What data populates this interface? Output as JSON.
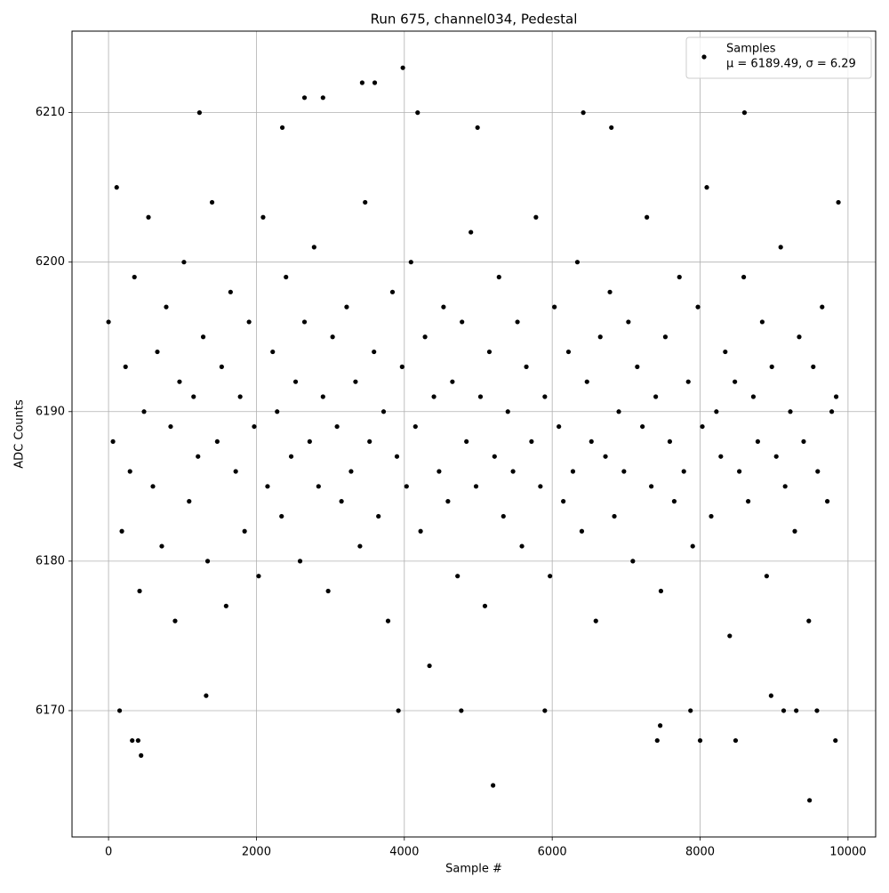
{
  "chart_data": {
    "type": "scatter",
    "title": "Run 675, channel034, Pedestal",
    "x_label": "Sample #",
    "y_label": "ADC Counts",
    "xlim": [
      -494,
      10374
    ],
    "ylim": [
      6161.55,
      6215.45
    ],
    "xticks": [
      0,
      2000,
      4000,
      6000,
      8000,
      10000
    ],
    "yticks": [
      6170,
      6180,
      6190,
      6200,
      6210
    ],
    "grid": true,
    "legend_position": "upper right",
    "legend_note": "μ = 6189.49, σ = 6.29",
    "x": [
      0,
      60,
      110,
      180,
      230,
      290,
      350,
      420,
      480,
      540,
      600,
      660,
      720,
      780,
      840,
      900,
      960,
      1020,
      1090,
      1150,
      1210,
      1280,
      1340,
      1400,
      1470,
      1530,
      1590,
      1650,
      1720,
      1780,
      1840,
      1900,
      1970,
      2030,
      2090,
      2150,
      2220,
      2280,
      2340,
      2400,
      2470,
      2530,
      2590,
      2650,
      2720,
      2780,
      2840,
      2900,
      2970,
      3030,
      3090,
      3150,
      3220,
      3280,
      3340,
      3400,
      3470,
      3530,
      3590,
      3650,
      3720,
      3780,
      3840,
      3900,
      3970,
      4030,
      4090,
      4150,
      4220,
      4280,
      4340,
      4400,
      4470,
      4530,
      4590,
      4650,
      4720,
      4780,
      4840,
      4900,
      4970,
      5030,
      5090,
      5150,
      5220,
      5280,
      5340,
      5400,
      5470,
      5530,
      5590,
      5650,
      5720,
      5780,
      5840,
      5900,
      5970,
      6030,
      6090,
      6150,
      6220,
      6280,
      6340,
      6400,
      6470,
      6530,
      6590,
      6650,
      6720,
      6780,
      6840,
      6900,
      6970,
      7030,
      7090,
      7150,
      7220,
      7280,
      7340,
      7400,
      7470,
      7530,
      7590,
      7650,
      7720,
      7780,
      7840,
      7900,
      7970,
      8030,
      8090,
      8150,
      8220,
      8280,
      8340,
      8400,
      8470,
      8530,
      8590,
      8650,
      8720,
      8780,
      8840,
      8900,
      8970,
      9030,
      9090,
      9150,
      9220,
      9280,
      9340,
      9400,
      9470,
      9530,
      9590,
      9650,
      9720,
      9780,
      9840,
      9870,
      150,
      320,
      400,
      440,
      1230,
      3430,
      3600,
      3980,
      4180,
      3920,
      5200,
      9480,
      8600,
      6420,
      4990,
      2350,
      6800,
      2900,
      2650,
      7420,
      7460,
      8000,
      8480,
      9830,
      5900,
      4770,
      7870,
      9130,
      9300,
      9580,
      1320,
      8960
    ],
    "series": [
      {
        "name": "Samples",
        "color": "#000000",
        "values": [
          6196,
          6188,
          6205,
          6182,
          6193,
          6186,
          6199,
          6178,
          6190,
          6203,
          6185,
          6194,
          6181,
          6197,
          6189,
          6176,
          6192,
          6200,
          6184,
          6191,
          6187,
          6195,
          6180,
          6204,
          6188,
          6193,
          6177,
          6198,
          6186,
          6191,
          6182,
          6196,
          6189,
          6179,
          6203,
          6185,
          6194,
          6190,
          6183,
          6199,
          6187,
          6192,
          6180,
          6196,
          6188,
          6201,
          6185,
          6191,
          6178,
          6195,
          6189,
          6184,
          6197,
          6186,
          6192,
          6181,
          6204,
          6188,
          6194,
          6183,
          6190,
          6176,
          6198,
          6187,
          6193,
          6185,
          6200,
          6189,
          6182,
          6195,
          6173,
          6191,
          6186,
          6197,
          6184,
          6192,
          6179,
          6196,
          6188,
          6202,
          6185,
          6191,
          6177,
          6194,
          6187,
          6199,
          6183,
          6190,
          6186,
          6196,
          6181,
          6193,
          6188,
          6203,
          6185,
          6191,
          6179,
          6197,
          6189,
          6184,
          6194,
          6186,
          6200,
          6182,
          6192,
          6188,
          6176,
          6195,
          6187,
          6198,
          6183,
          6190,
          6186,
          6196,
          6180,
          6193,
          6189,
          6203,
          6185,
          6191,
          6178,
          6195,
          6188,
          6184,
          6199,
          6186,
          6192,
          6181,
          6197,
          6189,
          6205,
          6183,
          6190,
          6187,
          6194,
          6175,
          6192,
          6186,
          6199,
          6184,
          6191,
          6188,
          6196,
          6179,
          6193,
          6187,
          6201,
          6185,
          6190,
          6182,
          6195,
          6188,
          6176,
          6193,
          6186,
          6197,
          6184,
          6190,
          6191,
          6204,
          6170,
          6168,
          6168,
          6167,
          6210,
          6212,
          6212,
          6213,
          6210,
          6170,
          6165,
          6164,
          6210,
          6210,
          6209,
          6209,
          6209,
          6211,
          6211,
          6168,
          6169,
          6168,
          6168,
          6168,
          6170,
          6170,
          6170,
          6170,
          6170,
          6170,
          6171,
          6171
        ]
      }
    ]
  }
}
